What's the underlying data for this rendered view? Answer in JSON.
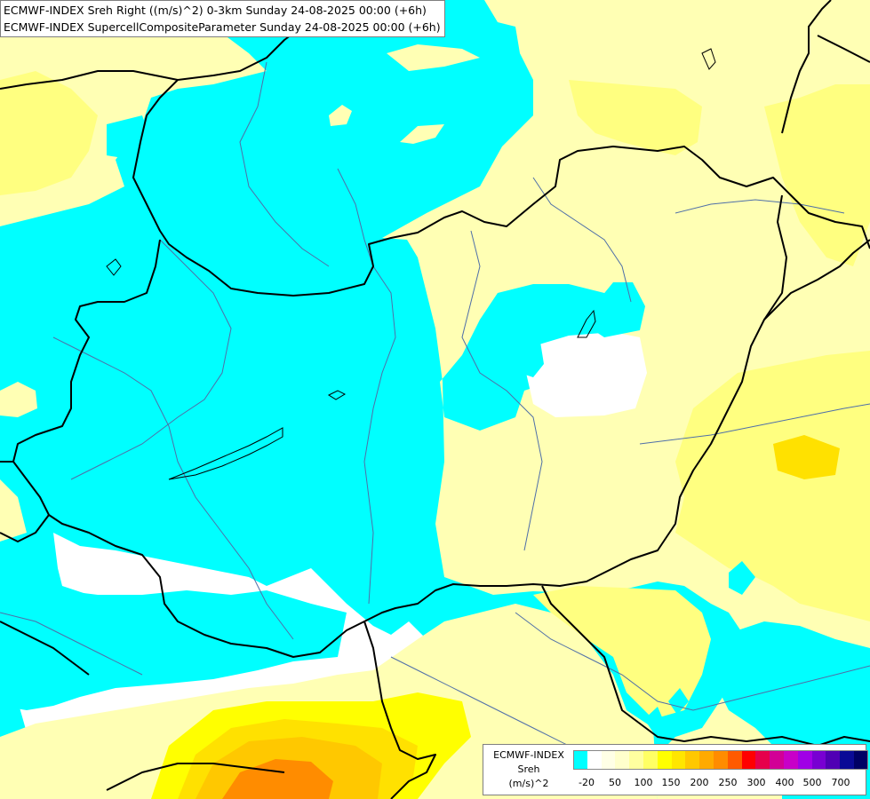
{
  "header": {
    "line1": "ECMWF-INDEX Sreh Right ((m/s)^2) 0-3km Sunday 24-08-2025 00:00 (+6h)",
    "line2": "ECMWF-INDEX SupercellCompositeParameter Sunday 24-08-2025 00:00 (+6h)"
  },
  "legend": {
    "title1": "ECMWF-INDEX",
    "title2": "Sreh",
    "title3": "(m/s)^2",
    "colors": [
      "#00ffff",
      "#ffffff",
      "#ffffe6",
      "#ffffcc",
      "#ffffa0",
      "#ffff64",
      "#ffff00",
      "#ffe600",
      "#ffc800",
      "#ffaa00",
      "#ff8c00",
      "#ff5a00",
      "#ff0000",
      "#e6004b",
      "#d20096",
      "#c800c8",
      "#a000e6",
      "#7800d2",
      "#5000b4",
      "#0a0a96",
      "#000064"
    ],
    "labels": [
      "-20",
      "50",
      "100",
      "150",
      "200",
      "250",
      "300",
      "400",
      "500",
      "700"
    ]
  },
  "map": {
    "colors": {
      "background": "#00ffff",
      "white": "#ffffff",
      "pale_yellow": "#ffffb4",
      "light_yellow": "#ffff80",
      "yellow": "#ffff00",
      "gold": "#ffe100",
      "orange": "#ffc800",
      "dark_orange": "#ff8c00",
      "border": "#000000",
      "river": "#4f6fa8"
    }
  }
}
